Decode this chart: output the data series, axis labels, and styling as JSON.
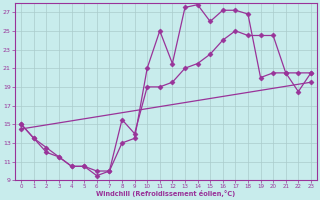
{
  "xlabel": "Windchill (Refroidissement éolien,°C)",
  "bg_color": "#c8ecec",
  "line_color": "#993399",
  "grid_color": "#aacccc",
  "xlim": [
    -0.5,
    23.5
  ],
  "ylim": [
    9,
    28
  ],
  "yticks": [
    9,
    11,
    13,
    15,
    17,
    19,
    21,
    23,
    25,
    27
  ],
  "xticks": [
    0,
    1,
    2,
    3,
    4,
    5,
    6,
    7,
    8,
    9,
    10,
    11,
    12,
    13,
    14,
    15,
    16,
    17,
    18,
    19,
    20,
    21,
    22,
    23
  ],
  "line1_x": [
    0,
    1,
    2,
    3,
    4,
    5,
    6,
    7,
    8,
    9,
    10,
    11,
    12,
    13,
    14,
    15,
    16,
    17,
    18,
    19,
    20,
    21,
    22,
    23
  ],
  "line1_y": [
    15,
    13.5,
    12,
    11.5,
    10.5,
    10.5,
    10,
    10,
    13,
    13.5,
    21,
    25,
    21.5,
    27.5,
    27.8,
    26,
    27.2,
    27.2,
    26.8,
    20,
    20.5,
    20.5,
    18.5,
    20.5
  ],
  "line2_x": [
    0,
    1,
    2,
    3,
    4,
    5,
    6,
    7,
    8,
    9,
    10,
    11,
    12,
    13,
    14,
    15,
    16,
    17,
    18,
    19,
    20,
    21,
    22,
    23
  ],
  "line2_y": [
    15,
    13.5,
    12.5,
    11.5,
    10.5,
    10.5,
    9.5,
    10,
    15.5,
    14,
    19,
    19,
    19.5,
    21,
    21.5,
    22.5,
    24,
    25,
    24.5,
    24.5,
    24.5,
    20.5,
    20.5,
    20.5
  ],
  "line3_x": [
    0,
    23
  ],
  "line3_y": [
    14.5,
    19.5
  ],
  "marker": "D",
  "markersize": 2.5,
  "linewidth": 0.9
}
